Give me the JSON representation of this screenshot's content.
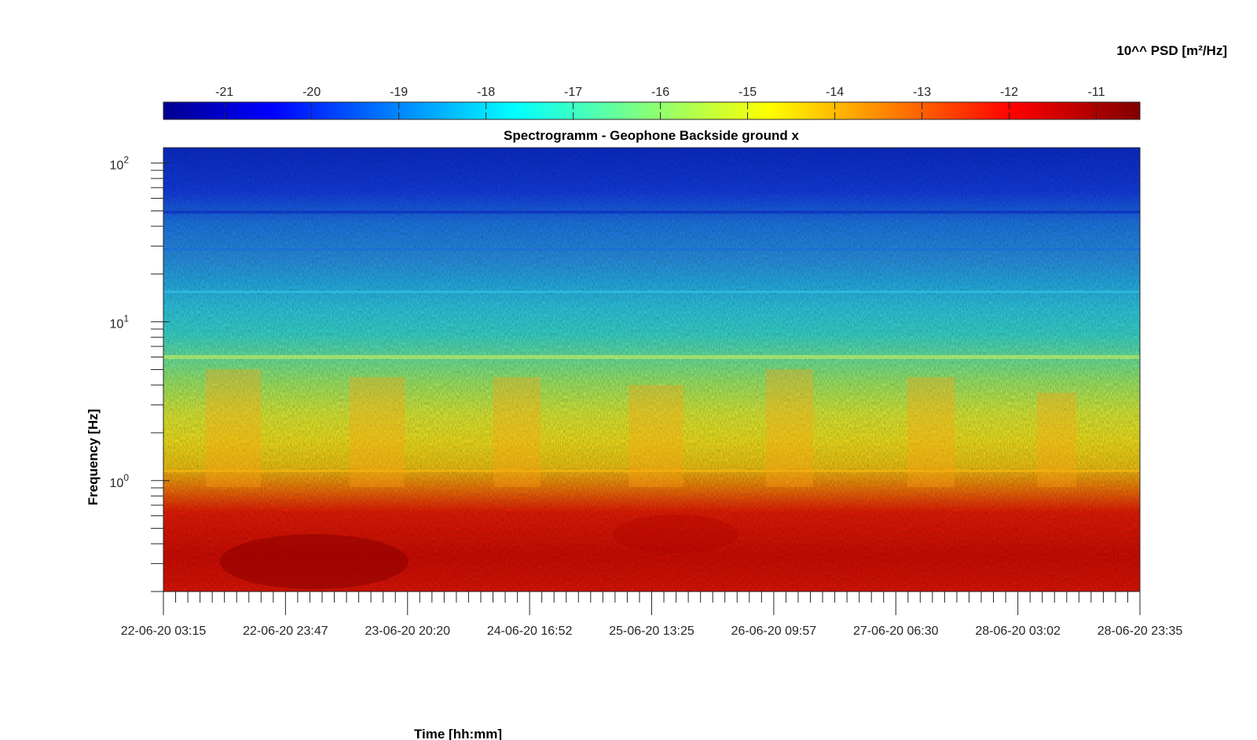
{
  "chart_data": {
    "type": "heatmap",
    "title": "Spectrogramm - Geophone Backside ground x",
    "xlabel": "Time [hh:mm]",
    "ylabel": "Frequency [Hz]",
    "x_ticks": [
      "22-06-20 03:15",
      "22-06-20 23:47",
      "23-06-20 20:20",
      "24-06-20 16:52",
      "25-06-20 13:25",
      "26-06-20 09:57",
      "27-06-20 06:30",
      "28-06-20 03:02",
      "28-06-20 23:35"
    ],
    "y_scale": "log",
    "ylim": [
      0.2,
      125
    ],
    "y_ticks": [
      {
        "base": "10",
        "exp": "0",
        "value": 1
      },
      {
        "base": "10",
        "exp": "1",
        "value": 10
      },
      {
        "base": "10",
        "exp": "2",
        "value": 100
      }
    ],
    "colorbar": {
      "label": "10^^ PSD [m²/Hz]",
      "colormap": "jet",
      "range": [
        -21.7,
        -10.5
      ],
      "ticks": [
        "-21",
        "-20",
        "-19",
        "-18",
        "-17",
        "-16",
        "-15",
        "-14",
        "-13",
        "-12",
        "-11"
      ]
    },
    "grid": false
  }
}
